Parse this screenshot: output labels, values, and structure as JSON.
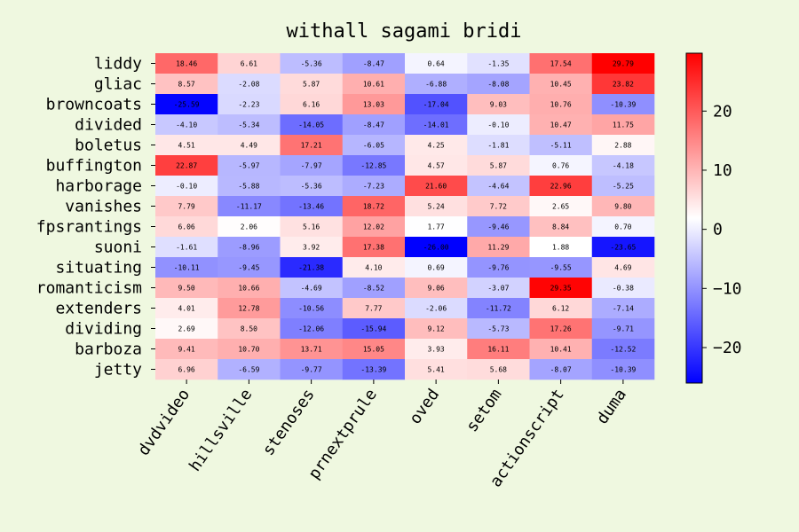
{
  "chart_data": {
    "type": "heatmap",
    "title": "withall sagami bridi",
    "x_categories": [
      "dvdvideo",
      "hillsville",
      "stenoses",
      "prnextprule",
      "oved",
      "setom",
      "actionscript",
      "duma"
    ],
    "y_categories": [
      "liddy",
      "gliac",
      "browncoats",
      "divided",
      "boletus",
      "buffington",
      "harborage",
      "vanishes",
      "fpsrantings",
      "suoni",
      "situating",
      "romanticism",
      "extenders",
      "dividing",
      "barboza",
      "jetty"
    ],
    "values": [
      [
        18.46,
        6.61,
        -5.36,
        -8.47,
        0.64,
        -1.35,
        17.54,
        29.79
      ],
      [
        8.57,
        -2.08,
        5.87,
        10.61,
        -6.88,
        -8.08,
        10.45,
        23.82
      ],
      [
        -25.59,
        -2.23,
        6.16,
        13.03,
        -17.04,
        9.03,
        10.76,
        -10.39
      ],
      [
        -4.1,
        -5.34,
        -14.05,
        -8.47,
        -14.01,
        -0.1,
        10.47,
        11.75
      ],
      [
        4.51,
        4.49,
        17.21,
        -6.05,
        4.25,
        -1.81,
        -5.11,
        2.88
      ],
      [
        22.87,
        -5.97,
        -7.97,
        -12.85,
        4.57,
        5.87,
        0.76,
        -4.18
      ],
      [
        -0.1,
        -5.88,
        -5.36,
        -7.23,
        21.6,
        -4.64,
        22.96,
        -5.25
      ],
      [
        7.79,
        -11.17,
        -13.46,
        18.72,
        5.24,
        7.72,
        2.65,
        9.8
      ],
      [
        6.06,
        2.06,
        5.16,
        12.02,
        1.77,
        -9.46,
        8.84,
        0.7
      ],
      [
        -1.61,
        -8.96,
        3.92,
        17.38,
        -26.0,
        11.29,
        1.88,
        -23.65
      ],
      [
        -10.11,
        -9.45,
        -21.38,
        4.1,
        0.69,
        -9.76,
        -9.55,
        4.69
      ],
      [
        9.5,
        10.66,
        -4.69,
        -8.52,
        9.06,
        -3.07,
        29.35,
        -0.38
      ],
      [
        4.01,
        12.78,
        -10.56,
        7.77,
        -2.06,
        -11.72,
        6.12,
        -7.14
      ],
      [
        2.69,
        8.5,
        -12.06,
        -15.94,
        9.12,
        -5.73,
        17.26,
        -9.71
      ],
      [
        9.41,
        10.7,
        13.71,
        15.05,
        3.93,
        16.11,
        10.41,
        -12.52
      ],
      [
        6.96,
        -6.59,
        -9.77,
        -13.39,
        5.41,
        5.68,
        -8.07,
        -10.39
      ]
    ],
    "cell_labels": [
      [
        "18.46",
        "6.61",
        "-5.36",
        "-8.47",
        "0.64",
        "-1.35",
        "17.54",
        "29.79"
      ],
      [
        "8.57",
        "-2.08",
        "5.87",
        "10.61",
        "-6.88",
        "-8.08",
        "10.45",
        "23.82"
      ],
      [
        "-25.59",
        "-2.23",
        "6.16",
        "13.03",
        "-17.04",
        "9.03",
        "10.76",
        "-10.39"
      ],
      [
        "-4.10",
        "-5.34",
        "-14.05",
        "-8.47",
        "-14.01",
        "-0.10",
        "10.47",
        "11.75"
      ],
      [
        "4.51",
        "4.49",
        "17.21",
        "-6.05",
        "4.25",
        "-1.81",
        "-5.11",
        "2.88"
      ],
      [
        "22.87",
        "-5.97",
        "-7.97",
        "-12.85",
        "4.57",
        "5.87",
        "0.76",
        "-4.18"
      ],
      [
        "-0.10",
        "-5.88",
        "-5.36",
        "-7.23",
        "21.60",
        "-4.64",
        "22.96",
        "-5.25"
      ],
      [
        "7.79",
        "-11.17",
        "-13.46",
        "18.72",
        "5.24",
        "7.72",
        "2.65",
        "9.80"
      ],
      [
        "6.06",
        "2.06",
        "5.16",
        "12.02",
        "1.77",
        "-9.46",
        "8.84",
        "0.70"
      ],
      [
        "-1.61",
        "-8.96",
        "3.92",
        "17.38",
        "-26.00",
        "11.29",
        "1.88",
        "-23.65"
      ],
      [
        "-10.11",
        "-9.45",
        "-21.38",
        "4.10",
        "0.69",
        "-9.76",
        "-9.55",
        "4.69"
      ],
      [
        "9.50",
        "10.66",
        "-4.69",
        "-8.52",
        "9.06",
        "-3.07",
        "29.35",
        "-0.38"
      ],
      [
        "4.01",
        "12.78",
        "-10.56",
        "7.77",
        "-2.06",
        "-11.72",
        "6.12",
        "-7.14"
      ],
      [
        "2.69",
        "8.50",
        "-12.06",
        "-15.94",
        "9.12",
        "-5.73",
        "17.26",
        "-9.71"
      ],
      [
        "9.41",
        "10.70",
        "13.71",
        "15.05",
        "3.93",
        "16.11",
        "10.41",
        "-12.52"
      ],
      [
        "6.96",
        "-6.59",
        "-9.77",
        "-13.39",
        "5.41",
        "5.68",
        "-8.07",
        "-10.39"
      ]
    ],
    "colormap": "bwr",
    "vmin": -26.0,
    "vmax": 29.79,
    "colorbar": {
      "ticks": [
        20,
        10,
        0,
        -10,
        -20
      ],
      "tick_labels": [
        "20",
        "10",
        "0",
        "−10",
        "−20"
      ]
    },
    "colors": {
      "background": "#eff8e0",
      "low": "#0000ff",
      "mid": "#ffffff",
      "high": "#ff0000"
    }
  }
}
